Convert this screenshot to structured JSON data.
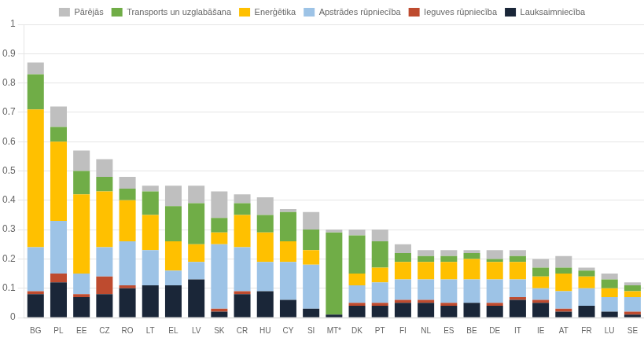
{
  "chart_data": {
    "type": "bar",
    "stacked": true,
    "grid": true,
    "legend": "top",
    "categories": [
      "BG",
      "PL",
      "EE",
      "CZ",
      "RO",
      "LT",
      "EL",
      "LV",
      "SK",
      "CR",
      "HU",
      "CY",
      "SI",
      "MT*",
      "DK",
      "PT",
      "FI",
      "NL",
      "ES",
      "BE",
      "DE",
      "IT",
      "IE",
      "AT",
      "FR",
      "LU",
      "SE"
    ],
    "series": [
      {
        "name": "Lauksaimniecība",
        "color": "#1a2638",
        "values": [
          0.08,
          0.12,
          0.07,
          0.08,
          0.1,
          0.11,
          0.11,
          0.13,
          0.02,
          0.08,
          0.09,
          0.06,
          0.03,
          0.01,
          0.04,
          0.04,
          0.05,
          0.05,
          0.04,
          0.05,
          0.04,
          0.06,
          0.05,
          0.02,
          0.04,
          0.02,
          0.01
        ]
      },
      {
        "name": "Ieguves rūpniecība",
        "color": "#be4b2f",
        "values": [
          0.01,
          0.03,
          0.01,
          0.06,
          0.01,
          0.0,
          0.0,
          0.0,
          0.01,
          0.01,
          0.0,
          0.0,
          0.0,
          0.0,
          0.01,
          0.01,
          0.01,
          0.01,
          0.01,
          0.0,
          0.01,
          0.01,
          0.01,
          0.01,
          0.0,
          0.0,
          0.01
        ]
      },
      {
        "name": "Apstrādes rūpniecība",
        "color": "#9dc3e6",
        "values": [
          0.15,
          0.18,
          0.07,
          0.1,
          0.15,
          0.12,
          0.05,
          0.06,
          0.22,
          0.15,
          0.1,
          0.13,
          0.15,
          0.0,
          0.06,
          0.07,
          0.07,
          0.07,
          0.08,
          0.08,
          0.08,
          0.06,
          0.04,
          0.06,
          0.06,
          0.05,
          0.05
        ]
      },
      {
        "name": "Enerģētika",
        "color": "#ffc000",
        "values": [
          0.47,
          0.27,
          0.27,
          0.19,
          0.14,
          0.12,
          0.1,
          0.06,
          0.04,
          0.11,
          0.1,
          0.07,
          0.05,
          0.0,
          0.04,
          0.05,
          0.06,
          0.06,
          0.06,
          0.07,
          0.06,
          0.06,
          0.04,
          0.06,
          0.04,
          0.03,
          0.02
        ]
      },
      {
        "name": "Transports un uzglabāšana",
        "color": "#70ad47",
        "values": [
          0.12,
          0.05,
          0.08,
          0.05,
          0.04,
          0.08,
          0.12,
          0.14,
          0.05,
          0.04,
          0.06,
          0.1,
          0.07,
          0.28,
          0.13,
          0.09,
          0.03,
          0.02,
          0.02,
          0.02,
          0.01,
          0.02,
          0.03,
          0.02,
          0.02,
          0.03,
          0.02
        ]
      },
      {
        "name": "Pārējās",
        "color": "#bfbfbf",
        "values": [
          0.04,
          0.07,
          0.07,
          0.06,
          0.04,
          0.02,
          0.07,
          0.06,
          0.09,
          0.03,
          0.06,
          0.01,
          0.06,
          0.01,
          0.02,
          0.04,
          0.03,
          0.02,
          0.02,
          0.01,
          0.03,
          0.02,
          0.03,
          0.04,
          0.01,
          0.02,
          0.01
        ]
      }
    ],
    "ylim": [
      0,
      1
    ],
    "yticks": [
      0,
      0.1,
      0.2,
      0.3,
      0.4,
      0.5,
      0.6,
      0.7,
      0.8,
      0.9,
      1
    ]
  }
}
